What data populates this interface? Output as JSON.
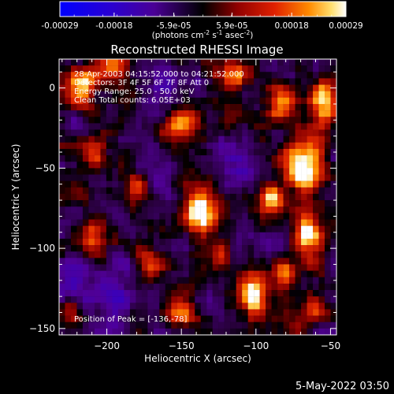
{
  "window": {
    "timestamp": "5-May-2022 03:50"
  },
  "colorbar": {
    "ticks": [
      "-0.00029",
      "-0.00018",
      "-5.9e-05",
      "5.9e-05",
      "0.00018",
      "0.00029"
    ],
    "tick_values": [
      -0.00029,
      -0.00018,
      -5.9e-05,
      5.9e-05,
      0.00018,
      0.00029
    ],
    "range": [
      -0.00029,
      0.00029
    ],
    "units_label": "(photons cm",
    "units_exp1": "-2",
    "units_mid": " s",
    "units_exp2": "-1",
    "units_mid2": " asec",
    "units_exp3": "-2",
    "units_close": ")",
    "colors": [
      "#0000ff",
      "#3c00c8",
      "#5a0090",
      "#000000",
      "#8c0000",
      "#e03000",
      "#ff9000",
      "#ffe070",
      "#ffffff"
    ]
  },
  "chart_data": {
    "type": "heatmap",
    "title": "Reconstructed RHESSI Image",
    "xlabel": "Heliocentric X (arcsec)",
    "ylabel": "Heliocentric Y (arcsec)",
    "xlim": [
      -232,
      -46
    ],
    "ylim": [
      -154,
      18
    ],
    "x_ticks": [
      -200,
      -150,
      -100,
      -50
    ],
    "y_ticks": [
      -150,
      -100,
      -50,
      0
    ],
    "x_tick_labels": [
      "−200",
      "−150",
      "−100",
      "−50"
    ],
    "y_tick_labels": [
      "−150",
      "−100",
      "−50",
      "0"
    ],
    "annotations": [
      "28-Apr-2003 04:15:52.000 to 04:21:52.000",
      "Detectors: 3F 4F 5F 6F 7F 8F  Att 0",
      "Energy Range: 25.0 - 50.0 keV",
      "Clean     Total counts: 6.05E+03"
    ],
    "peak_label": "Position of Peak = [-136,-78]",
    "peak": [
      -136,
      -78
    ],
    "bright_regions": [
      {
        "x": -136,
        "y": -78,
        "sx": 7,
        "sy": 10,
        "amp": 1.0
      },
      {
        "x": -65,
        "y": -48,
        "sx": 10,
        "sy": 12,
        "amp": 0.95
      },
      {
        "x": -52,
        "y": -10,
        "sx": 7,
        "sy": 10,
        "amp": 0.9
      },
      {
        "x": -62,
        "y": -92,
        "sx": 7,
        "sy": 10,
        "amp": 0.85
      },
      {
        "x": -218,
        "y": 0,
        "sx": 7,
        "sy": 8,
        "amp": 0.8
      },
      {
        "x": -195,
        "y": 12,
        "sx": 7,
        "sy": 7,
        "amp": 0.75
      },
      {
        "x": -150,
        "y": -22,
        "sx": 8,
        "sy": 6,
        "amp": 0.7
      },
      {
        "x": -100,
        "y": -130,
        "sx": 6,
        "sy": 10,
        "amp": 0.85
      },
      {
        "x": -150,
        "y": -140,
        "sx": 8,
        "sy": 6,
        "amp": 0.6
      },
      {
        "x": -90,
        "y": -70,
        "sx": 6,
        "sy": 7,
        "amp": 0.75
      },
      {
        "x": -180,
        "y": -60,
        "sx": 6,
        "sy": 6,
        "amp": 0.55
      },
      {
        "x": -210,
        "y": -95,
        "sx": 6,
        "sy": 8,
        "amp": 0.55
      },
      {
        "x": -112,
        "y": 8,
        "sx": 7,
        "sy": 6,
        "amp": 0.65
      },
      {
        "x": -82,
        "y": -10,
        "sx": 6,
        "sy": 8,
        "amp": 0.6
      },
      {
        "x": -208,
        "y": -40,
        "sx": 6,
        "sy": 7,
        "amp": 0.55
      },
      {
        "x": -170,
        "y": -110,
        "sx": 6,
        "sy": 7,
        "amp": 0.5
      },
      {
        "x": -122,
        "y": -105,
        "sx": 5,
        "sy": 6,
        "amp": 0.55
      },
      {
        "x": -80,
        "y": -115,
        "sx": 5,
        "sy": 7,
        "amp": 0.6
      },
      {
        "x": -225,
        "y": -140,
        "sx": 7,
        "sy": 7,
        "amp": 0.45
      },
      {
        "x": -58,
        "y": -140,
        "sx": 6,
        "sy": 6,
        "amp": 0.5
      }
    ],
    "dim_regions": [
      {
        "x": -195,
        "y": -130,
        "sx": 14,
        "sy": 10,
        "amp": 0.55
      },
      {
        "x": -225,
        "y": -118,
        "sx": 8,
        "sy": 10,
        "amp": 0.4
      },
      {
        "x": -160,
        "y": 5,
        "sx": 10,
        "sy": 8,
        "amp": 0.45
      },
      {
        "x": -115,
        "y": -45,
        "sx": 10,
        "sy": 8,
        "amp": 0.4
      },
      {
        "x": -95,
        "y": -95,
        "sx": 8,
        "sy": 8,
        "amp": 0.35
      }
    ]
  }
}
